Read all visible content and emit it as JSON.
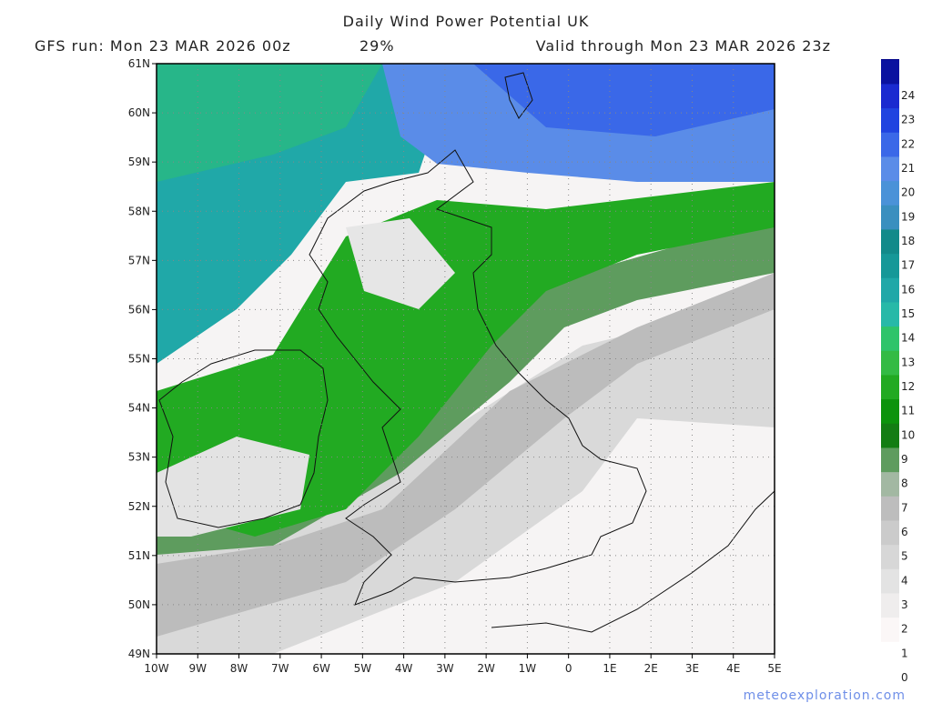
{
  "header": {
    "title": "Daily Wind Power Potential UK",
    "run": "GFS run: Mon 23 MAR 2026 00z",
    "percent": "29%",
    "valid": "Valid through Mon 23 MAR 2026 23z"
  },
  "map": {
    "lat_labels": [
      "61N",
      "60N",
      "59N",
      "58N",
      "57N",
      "56N",
      "55N",
      "54N",
      "53N",
      "52N",
      "51N",
      "50N",
      "49N"
    ],
    "lon_labels": [
      "10W",
      "9W",
      "8W",
      "7W",
      "6W",
      "5W",
      "4W",
      "3W",
      "2W",
      "1W",
      "0",
      "1E",
      "2E",
      "3E",
      "4E",
      "5E"
    ]
  },
  "colorbar": {
    "labels": [
      0,
      1,
      2,
      3,
      4,
      5,
      6,
      7,
      8,
      9,
      10,
      11,
      12,
      13,
      14,
      15,
      16,
      17,
      18,
      19,
      20,
      21,
      22,
      23,
      24
    ],
    "colors": [
      "#ffffff",
      "#fbf7f7",
      "#efeded",
      "#e3e3e3",
      "#d7d7d7",
      "#cbcbcb",
      "#bdbdbd",
      "#a2b8a2",
      "#5e9c5e",
      "#137d13",
      "#0c930c",
      "#22aa22",
      "#33bb44",
      "#2ec46a",
      "#27b9a8",
      "#20a8a8",
      "#169898",
      "#128a8a",
      "#3a8fbf",
      "#4a92d8",
      "#5a8ce8",
      "#3a68e8",
      "#2044e0",
      "#1a2ad0",
      "#0a12a0"
    ]
  },
  "footer": {
    "credit": "meteoexploration.com"
  }
}
